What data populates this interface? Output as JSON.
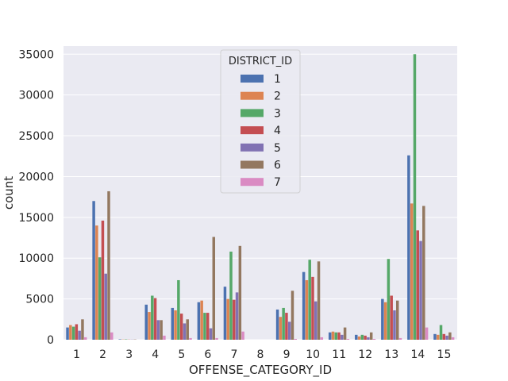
{
  "chart_data": {
    "type": "bar",
    "xlabel": "OFFENSE_CATEGORY_ID",
    "ylabel": "count",
    "ylim": [
      0,
      36000
    ],
    "yticks": [
      0,
      5000,
      10000,
      15000,
      20000,
      25000,
      30000,
      35000
    ],
    "categories": [
      "1",
      "2",
      "3",
      "4",
      "5",
      "6",
      "7",
      "8",
      "9",
      "10",
      "11",
      "12",
      "13",
      "14",
      "15"
    ],
    "legend": {
      "title": "DISTRICT_ID",
      "placement": "top-center"
    },
    "grid": true,
    "series": [
      {
        "name": "1",
        "color": "#4c72b0",
        "values": [
          1500,
          17000,
          50,
          4300,
          3900,
          4600,
          6500,
          0,
          3700,
          8300,
          900,
          600,
          5000,
          22600,
          700
        ]
      },
      {
        "name": "2",
        "color": "#dd8452",
        "values": [
          1800,
          14000,
          30,
          3400,
          3600,
          4800,
          5000,
          0,
          2800,
          7300,
          1000,
          400,
          4600,
          16700,
          600
        ]
      },
      {
        "name": "3",
        "color": "#55a868",
        "values": [
          1600,
          10100,
          40,
          5400,
          7300,
          3300,
          10800,
          0,
          3900,
          9800,
          900,
          600,
          9900,
          35000,
          1800
        ]
      },
      {
        "name": "4",
        "color": "#c44e52",
        "values": [
          1900,
          14600,
          20,
          5100,
          3200,
          3300,
          4900,
          0,
          3300,
          7700,
          900,
          500,
          5400,
          13400,
          700
        ]
      },
      {
        "name": "5",
        "color": "#8172b3",
        "values": [
          1100,
          8100,
          20,
          2400,
          2000,
          1400,
          5800,
          0,
          2200,
          4700,
          600,
          300,
          3600,
          12100,
          500
        ]
      },
      {
        "name": "6",
        "color": "#937860",
        "values": [
          2500,
          18200,
          30,
          2400,
          2500,
          12600,
          11500,
          0,
          6000,
          9600,
          1500,
          900,
          4800,
          16400,
          900
        ]
      },
      {
        "name": "7",
        "color": "#da8bc3",
        "values": [
          300,
          900,
          0,
          500,
          200,
          200,
          1000,
          0,
          100,
          300,
          100,
          100,
          200,
          1500,
          300
        ]
      }
    ]
  }
}
